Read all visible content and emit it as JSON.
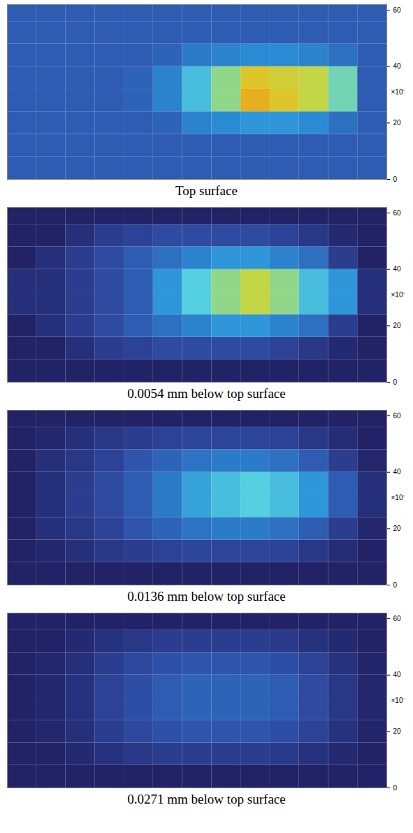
{
  "chart_data": [
    {
      "type": "heatmap",
      "title": "Top surface",
      "ylabel": "×10⁻",
      "tick_labels": "y",
      "xlim": [
        0,
        13
      ],
      "ylim": [
        0,
        62
      ],
      "yticks": [
        0,
        20,
        40,
        60
      ],
      "xbins": [
        0,
        1,
        2,
        3,
        4,
        5,
        6,
        7,
        8,
        9,
        10,
        11,
        12,
        13
      ],
      "ybins": [
        0,
        8,
        16,
        24,
        32,
        40,
        48,
        56,
        62
      ],
      "color_range": [
        0,
        1
      ],
      "colors": [
        "#222266",
        "#2f4fa8",
        "#2a90d8",
        "#55d0e0",
        "#b8dc50",
        "#e8c020",
        "#c81818"
      ],
      "cells": [
        [
          0.2,
          0.2,
          0.2,
          0.2,
          0.2,
          0.2,
          0.2,
          0.2,
          0.2,
          0.2,
          0.2,
          0.2,
          0.2
        ],
        [
          0.2,
          0.2,
          0.2,
          0.2,
          0.2,
          0.2,
          0.2,
          0.2,
          0.2,
          0.2,
          0.2,
          0.2,
          0.2
        ],
        [
          0.2,
          0.2,
          0.2,
          0.2,
          0.2,
          0.22,
          0.3,
          0.32,
          0.35,
          0.35,
          0.32,
          0.25,
          0.2
        ],
        [
          0.2,
          0.2,
          0.2,
          0.2,
          0.22,
          0.3,
          0.45,
          0.6,
          0.85,
          0.8,
          0.7,
          0.55,
          0.2
        ],
        [
          0.2,
          0.2,
          0.2,
          0.2,
          0.22,
          0.3,
          0.45,
          0.6,
          0.8,
          0.75,
          0.7,
          0.55,
          0.2
        ],
        [
          0.2,
          0.2,
          0.2,
          0.2,
          0.2,
          0.22,
          0.28,
          0.3,
          0.32,
          0.32,
          0.3,
          0.25,
          0.2
        ],
        [
          0.2,
          0.2,
          0.2,
          0.2,
          0.2,
          0.2,
          0.2,
          0.2,
          0.2,
          0.2,
          0.2,
          0.2,
          0.2
        ],
        [
          0.2,
          0.2,
          0.2,
          0.2,
          0.2,
          0.2,
          0.2,
          0.2,
          0.2,
          0.2,
          0.2,
          0.2,
          0.2
        ]
      ]
    },
    {
      "type": "heatmap",
      "title": "0.0054 mm below top surface",
      "ylabel": "×10⁻",
      "tick_labels": "y",
      "xlim": [
        0,
        13
      ],
      "ylim": [
        0,
        62
      ],
      "yticks": [
        0,
        20,
        40,
        60
      ],
      "xbins": [
        0,
        1,
        2,
        3,
        4,
        5,
        6,
        7,
        8,
        9,
        10,
        11,
        12,
        13
      ],
      "ybins": [
        0,
        8,
        16,
        24,
        32,
        40,
        48,
        56,
        62
      ],
      "color_range": [
        0,
        1
      ],
      "colors": [
        "#222266",
        "#2f4fa8",
        "#2a90d8",
        "#55d0e0",
        "#b8dc50",
        "#e8c020",
        "#c81818"
      ],
      "cells": [
        [
          0,
          0,
          0,
          0,
          0,
          0,
          0,
          0,
          0,
          0,
          0,
          0,
          0
        ],
        [
          0,
          0,
          0.05,
          0.1,
          0.12,
          0.15,
          0.15,
          0.15,
          0.15,
          0.12,
          0.08,
          0.03,
          0
        ],
        [
          0,
          0.05,
          0.1,
          0.15,
          0.2,
          0.25,
          0.3,
          0.35,
          0.35,
          0.3,
          0.25,
          0.1,
          0
        ],
        [
          0.05,
          0.05,
          0.1,
          0.15,
          0.2,
          0.35,
          0.5,
          0.6,
          0.7,
          0.6,
          0.45,
          0.35,
          0.05
        ],
        [
          0.05,
          0.05,
          0.1,
          0.15,
          0.2,
          0.35,
          0.5,
          0.6,
          0.7,
          0.6,
          0.45,
          0.35,
          0.05
        ],
        [
          0,
          0.05,
          0.1,
          0.15,
          0.2,
          0.25,
          0.3,
          0.35,
          0.35,
          0.3,
          0.25,
          0.1,
          0
        ],
        [
          0,
          0,
          0.05,
          0.1,
          0.12,
          0.15,
          0.15,
          0.15,
          0.15,
          0.12,
          0.08,
          0.03,
          0
        ],
        [
          0,
          0,
          0,
          0,
          0,
          0,
          0,
          0,
          0,
          0,
          0,
          0,
          0
        ]
      ]
    },
    {
      "type": "heatmap",
      "title": "0.0136 mm below top surface",
      "ylabel": "×10⁻",
      "tick_labels": "y",
      "xlim": [
        0,
        13
      ],
      "ylim": [
        0,
        62
      ],
      "yticks": [
        0,
        20,
        40,
        60
      ],
      "xbins": [
        0,
        1,
        2,
        3,
        4,
        5,
        6,
        7,
        8,
        9,
        10,
        11,
        12,
        13
      ],
      "ybins": [
        0,
        8,
        16,
        24,
        32,
        40,
        48,
        56,
        62
      ],
      "color_range": [
        0,
        1
      ],
      "colors": [
        "#222266",
        "#2f4fa8",
        "#2a90d8",
        "#55d0e0",
        "#b8dc50",
        "#e8c020",
        "#c81818"
      ],
      "cells": [
        [
          0,
          0,
          0,
          0,
          0,
          0,
          0,
          0,
          0,
          0,
          0,
          0,
          0
        ],
        [
          0,
          0.02,
          0.05,
          0.08,
          0.1,
          0.12,
          0.13,
          0.13,
          0.13,
          0.12,
          0.08,
          0.04,
          0
        ],
        [
          0,
          0.05,
          0.08,
          0.12,
          0.18,
          0.22,
          0.26,
          0.28,
          0.28,
          0.25,
          0.2,
          0.1,
          0.02
        ],
        [
          0,
          0.05,
          0.1,
          0.15,
          0.2,
          0.28,
          0.38,
          0.45,
          0.5,
          0.45,
          0.35,
          0.2,
          0.05
        ],
        [
          0,
          0.05,
          0.1,
          0.15,
          0.2,
          0.28,
          0.38,
          0.45,
          0.5,
          0.45,
          0.35,
          0.2,
          0.05
        ],
        [
          0,
          0.05,
          0.08,
          0.12,
          0.18,
          0.22,
          0.26,
          0.28,
          0.28,
          0.25,
          0.2,
          0.1,
          0.02
        ],
        [
          0,
          0.02,
          0.05,
          0.08,
          0.1,
          0.12,
          0.13,
          0.13,
          0.13,
          0.12,
          0.08,
          0.04,
          0
        ],
        [
          0,
          0,
          0,
          0,
          0,
          0,
          0,
          0,
          0,
          0,
          0,
          0,
          0
        ]
      ]
    },
    {
      "type": "heatmap",
      "title": "0.0271 mm below top surface",
      "ylabel": "×10⁻",
      "tick_labels": "y",
      "xlim": [
        0,
        13
      ],
      "ylim": [
        0,
        62
      ],
      "yticks": [
        0,
        20,
        40,
        60
      ],
      "xbins": [
        0,
        1,
        2,
        3,
        4,
        5,
        6,
        7,
        8,
        9,
        10,
        11,
        12,
        13
      ],
      "ybins": [
        0,
        8,
        16,
        24,
        32,
        40,
        48,
        56,
        62
      ],
      "color_range": [
        0,
        1
      ],
      "colors": [
        "#222266",
        "#2f4fa8",
        "#2a90d8",
        "#55d0e0",
        "#b8dc50",
        "#e8c020",
        "#c81818"
      ],
      "cells": [
        [
          0,
          0,
          0,
          0,
          0,
          0,
          0,
          0,
          0,
          0,
          0,
          0,
          0
        ],
        [
          0,
          0,
          0.03,
          0.06,
          0.08,
          0.1,
          0.1,
          0.1,
          0.1,
          0.09,
          0.06,
          0.03,
          0
        ],
        [
          0,
          0.02,
          0.05,
          0.1,
          0.14,
          0.17,
          0.18,
          0.18,
          0.18,
          0.16,
          0.12,
          0.06,
          0.01
        ],
        [
          0,
          0.02,
          0.06,
          0.12,
          0.16,
          0.2,
          0.22,
          0.22,
          0.22,
          0.2,
          0.15,
          0.08,
          0.02
        ],
        [
          0,
          0.02,
          0.06,
          0.12,
          0.16,
          0.2,
          0.22,
          0.22,
          0.22,
          0.2,
          0.15,
          0.08,
          0.02
        ],
        [
          0,
          0.02,
          0.05,
          0.1,
          0.14,
          0.17,
          0.18,
          0.18,
          0.18,
          0.16,
          0.12,
          0.06,
          0.01
        ],
        [
          0,
          0,
          0.03,
          0.06,
          0.08,
          0.1,
          0.1,
          0.1,
          0.1,
          0.09,
          0.06,
          0.03,
          0
        ],
        [
          0,
          0,
          0,
          0,
          0,
          0,
          0,
          0,
          0,
          0,
          0,
          0,
          0
        ]
      ]
    }
  ]
}
